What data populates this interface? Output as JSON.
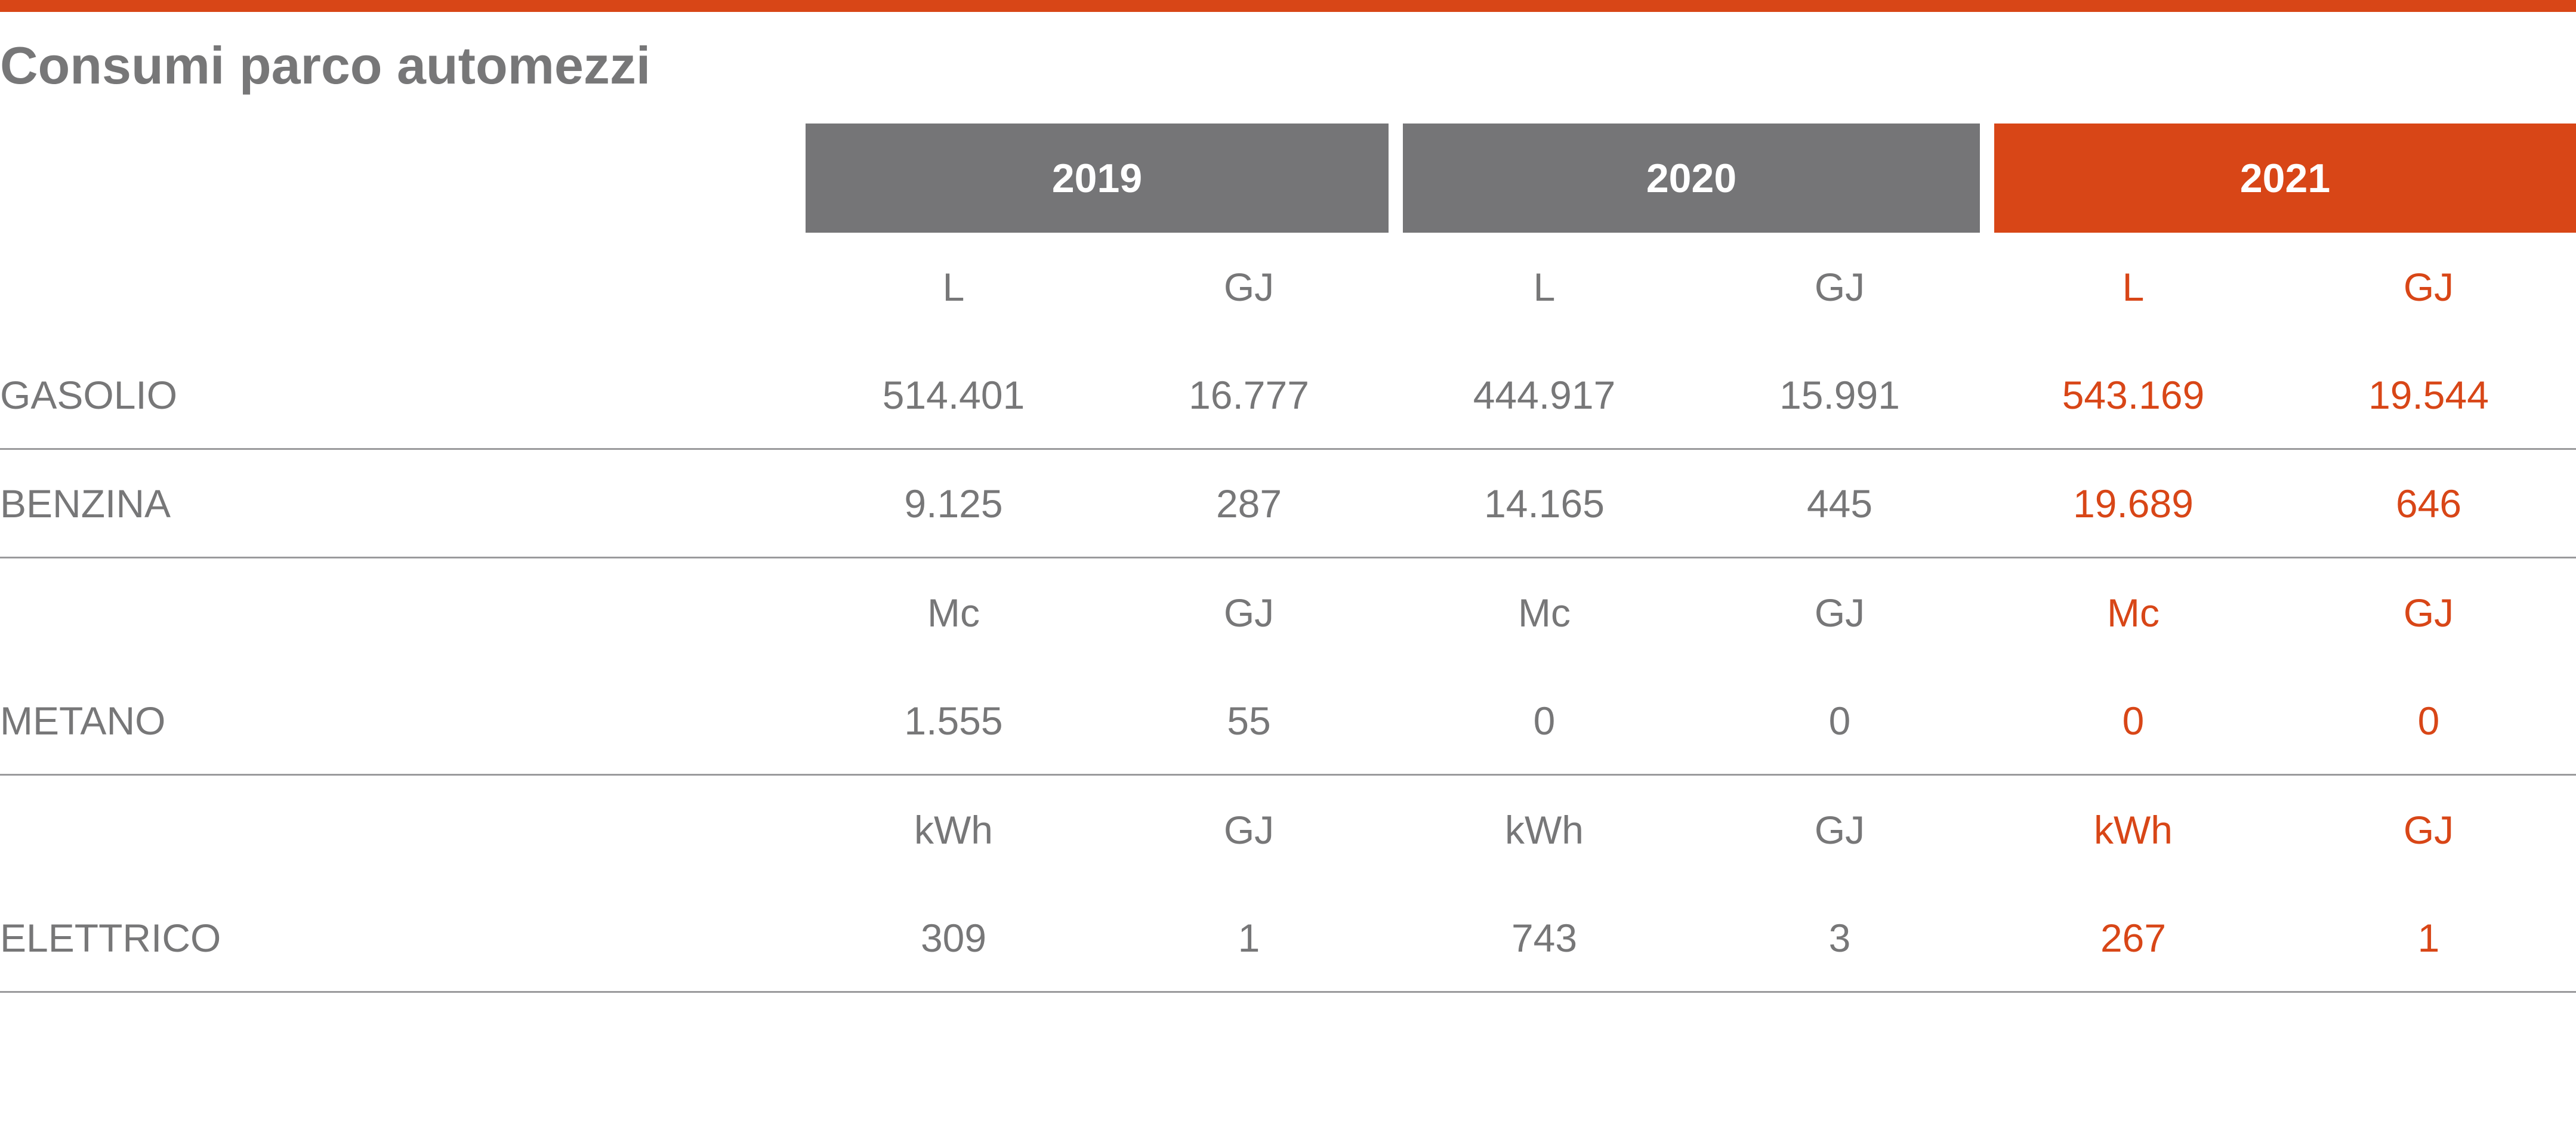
{
  "title": "Consumi parco automezzi",
  "accent_color": "#d84617",
  "header_gray": "#757577",
  "years": [
    "2019",
    "2020",
    "2021"
  ],
  "unit_rows": {
    "liquid": [
      "L",
      "GJ",
      "L",
      "GJ",
      "L",
      "GJ"
    ],
    "gas": [
      "Mc",
      "GJ",
      "Mc",
      "GJ",
      "Mc",
      "GJ"
    ],
    "electric": [
      "kWh",
      "GJ",
      "kWh",
      "GJ",
      "kWh",
      "GJ"
    ]
  },
  "rows": {
    "gasolio": {
      "label": "GASOLIO",
      "values": [
        "514.401",
        "16.777",
        "444.917",
        "15.991",
        "543.169",
        "19.544"
      ]
    },
    "benzina": {
      "label": "BENZINA",
      "values": [
        "9.125",
        "287",
        "14.165",
        "445",
        "19.689",
        "646"
      ]
    },
    "metano": {
      "label": "METANO",
      "values": [
        "1.555",
        "55",
        "0",
        "0",
        "0",
        "0"
      ]
    },
    "elettrico": {
      "label": "ELETTRICO",
      "values": [
        "309",
        "1",
        "743",
        "3",
        "267",
        "1"
      ]
    }
  }
}
